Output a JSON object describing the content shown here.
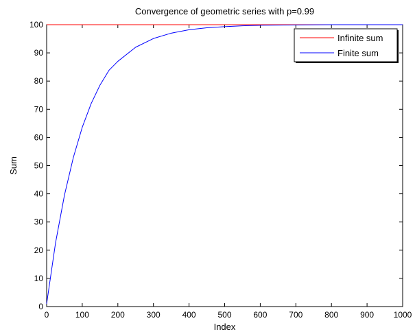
{
  "chart_data": {
    "type": "line",
    "title": "Convergence of geometric series with p=0.99",
    "xlabel": "Index",
    "ylabel": "Sum",
    "xlim": [
      0,
      1000
    ],
    "ylim": [
      0,
      100
    ],
    "xticks": [
      0,
      100,
      200,
      300,
      400,
      500,
      600,
      700,
      800,
      900,
      1000
    ],
    "yticks": [
      0,
      10,
      20,
      30,
      40,
      50,
      60,
      70,
      80,
      90,
      100
    ],
    "grid": false,
    "legend_position": "top-right",
    "series": [
      {
        "name": "Infinite sum",
        "color": "#ff0000",
        "x": [
          0,
          1000
        ],
        "y": [
          100,
          100
        ]
      },
      {
        "name": "Finite sum",
        "color": "#0000ff",
        "x": [
          0,
          25,
          50,
          75,
          100,
          125,
          150,
          175,
          200,
          250,
          300,
          350,
          400,
          450,
          500,
          550,
          600,
          700,
          800,
          900,
          1000
        ],
        "y": [
          1,
          22.6,
          39.5,
          52.9,
          63.6,
          72.0,
          78.6,
          83.8,
          87.0,
          92.0,
          95.1,
          97.0,
          98.2,
          98.9,
          99.3,
          99.6,
          99.8,
          99.9,
          100,
          100,
          100
        ]
      }
    ]
  }
}
